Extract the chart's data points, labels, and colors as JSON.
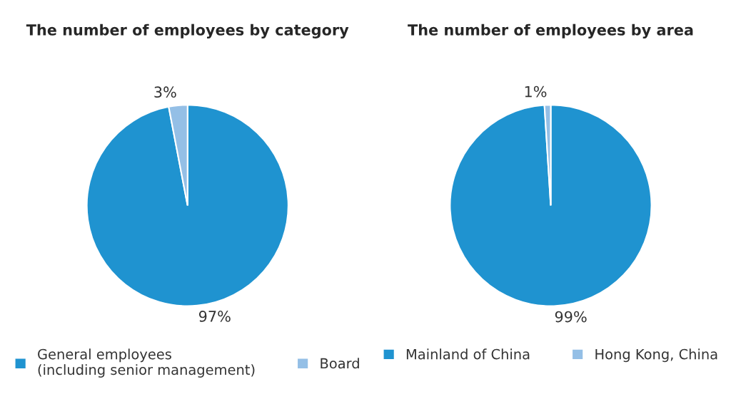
{
  "chart_data": [
    {
      "type": "pie",
      "title": "The number of employees by category",
      "categories": [
        "General employees\n(including senior management)",
        "Board"
      ],
      "values": [
        97,
        3
      ],
      "colors": [
        "#1f93d0",
        "#94bfe6"
      ],
      "value_labels": [
        "97%",
        "3%"
      ],
      "legend": "bottom"
    },
    {
      "type": "pie",
      "title": "The number of employees by area",
      "categories": [
        "Mainland of China",
        "Hong Kong, China"
      ],
      "values": [
        99,
        1
      ],
      "colors": [
        "#1f93d0",
        "#94bfe6"
      ],
      "value_labels": [
        "99%",
        "1%"
      ],
      "legend": "bottom"
    }
  ]
}
